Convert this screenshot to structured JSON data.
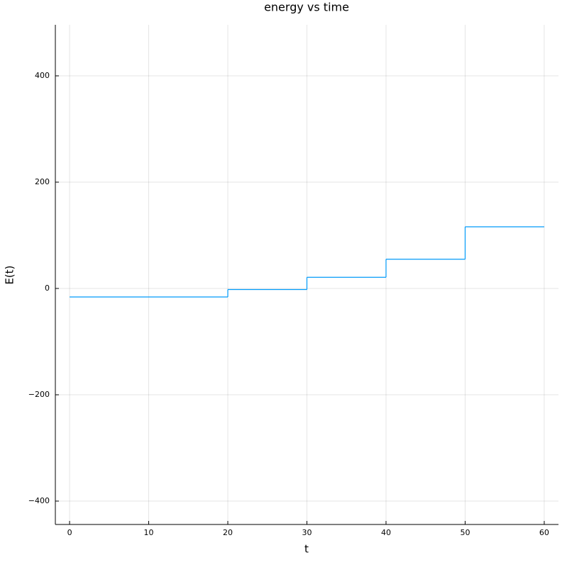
{
  "chart_data": {
    "type": "line",
    "step": "post",
    "title": "energy vs time",
    "xlabel": "t",
    "ylabel": "E(t)",
    "x": [
      0,
      20,
      30,
      40,
      50,
      60
    ],
    "series": [
      {
        "color": "#009af9",
        "values": [
          -16,
          -2,
          21,
          55,
          116,
          116
        ]
      }
    ],
    "xlim": [
      -1.8,
      61.8
    ],
    "xticks": [
      0,
      10,
      20,
      30,
      40,
      50,
      60
    ],
    "ylim": [
      -444,
      496
    ],
    "yticks": [
      {
        "value": -400,
        "label": "−400"
      },
      {
        "value": -200,
        "label": "−200"
      },
      0,
      200,
      400
    ],
    "grid": true
  }
}
